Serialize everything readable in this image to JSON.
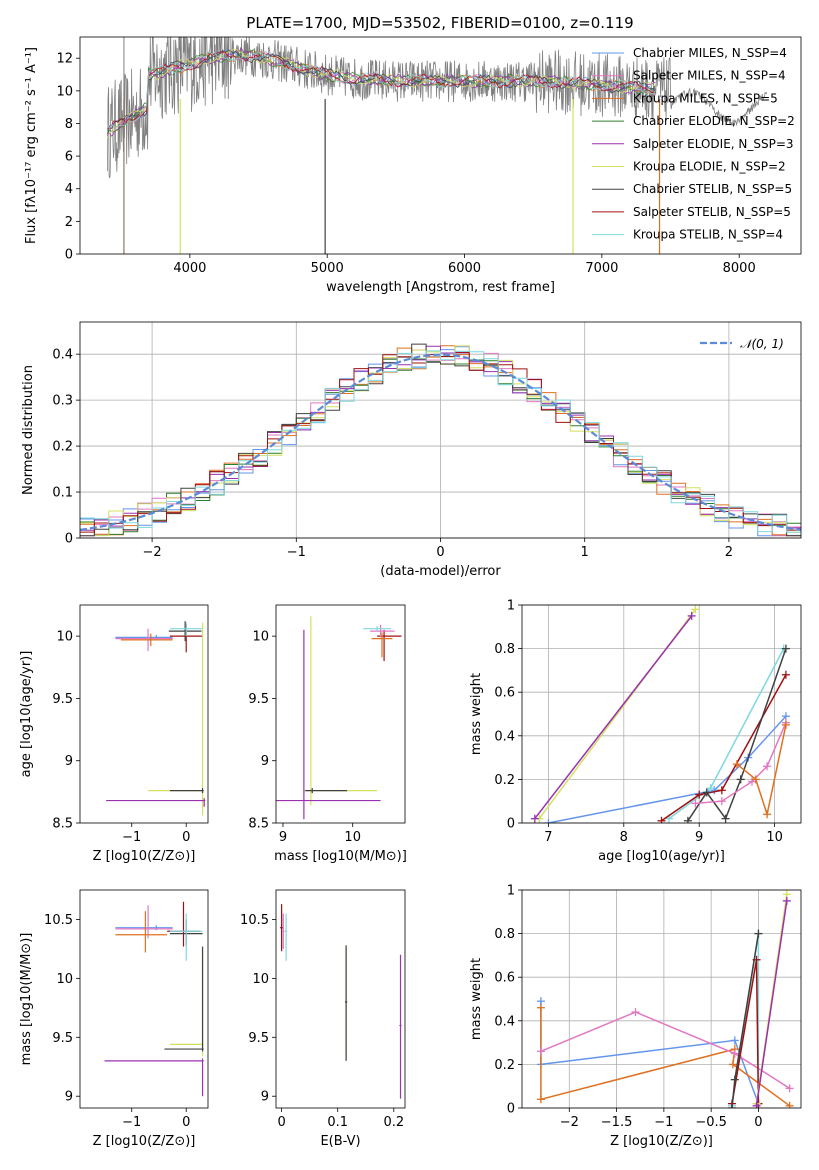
{
  "chart_data": [
    {
      "type": "line",
      "title": "PLATE=1700, MJD=53502, FIBERID=0100, z=0.119",
      "xlabel": "wavelength [Angstrom, rest frame]",
      "ylabel": "Flux [fλ10⁻¹⁷ erg cm⁻² s⁻¹ A⁻¹]",
      "xlim": [
        3200,
        8450
      ],
      "ylim": [
        0,
        13.3
      ],
      "xticks": [
        4000,
        5000,
        6000,
        7000,
        8000
      ],
      "yticks": [
        0,
        2,
        4,
        6,
        8,
        10,
        12
      ],
      "grid": false,
      "legend_position": "top-right",
      "series": [
        {
          "name": "Chabrier MILES, N_SSP=4",
          "color": "#6495ed"
        },
        {
          "name": "Salpeter MILES, N_SSP=4",
          "color": "#e377c2"
        },
        {
          "name": "Kroupa MILES, N_SSP=5",
          "color": "#e07020"
        },
        {
          "name": "Chabrier ELODIE, N_SSP=2",
          "color": "#2c7f2c"
        },
        {
          "name": "Salpeter ELODIE, N_SSP=3",
          "color": "#9b30b0"
        },
        {
          "name": "Kroupa ELODIE, N_SSP=2",
          "color": "#d4e060"
        },
        {
          "name": "Chabrier STELIB, N_SSP=5",
          "color": "#404040"
        },
        {
          "name": "Salpeter STELIB, N_SSP=5",
          "color": "#a01010"
        },
        {
          "name": "Kroupa STELIB, N_SSP=4",
          "color": "#7fd8e0"
        }
      ],
      "data_color": "#808080"
    },
    {
      "type": "bar",
      "xlabel": "(data-model)/error",
      "ylabel": "Normed distribution",
      "xlim": [
        -2.5,
        2.5
      ],
      "ylim": [
        0,
        0.47
      ],
      "xticks": [
        -2,
        -1,
        0,
        1,
        2
      ],
      "yticks": [
        0.0,
        0.1,
        0.2,
        0.3,
        0.4
      ],
      "grid": true,
      "legend": "𝒩(0, 1)",
      "legend_position": "top-right",
      "gaussian_color": "#5b8bd6"
    },
    {
      "type": "scatter",
      "xlabel": "Z [log10(Z/Z⊙)]",
      "ylabel": "age  [log10(age/yr)]",
      "xlim": [
        -1.95,
        0.4
      ],
      "ylim": [
        8.5,
        10.25
      ],
      "xticks": [
        -1,
        0
      ],
      "yticks": [
        8.5,
        9.0,
        9.5,
        10.0
      ]
    },
    {
      "type": "scatter",
      "xlabel": "mass [log10(M/M⊙)]",
      "xlim": [
        8.9,
        10.75
      ],
      "ylim": [
        8.5,
        10.25
      ],
      "xticks": [
        9,
        10
      ],
      "yticks": [
        8.5,
        9.0,
        9.5,
        10.0
      ]
    },
    {
      "type": "line",
      "xlabel": "age  [log10(age/yr)]",
      "ylabel": "mass weight",
      "xlim": [
        6.65,
        10.35
      ],
      "ylim": [
        0,
        1.0
      ],
      "xticks": [
        7,
        8,
        9,
        10
      ],
      "yticks": [
        0.0,
        0.2,
        0.4,
        0.6,
        0.8,
        1.0
      ],
      "grid": true
    },
    {
      "type": "scatter",
      "xlabel": "Z [log10(Z/Z⊙)]",
      "ylabel": "mass [log10(M/M⊙)]",
      "xlim": [
        -1.95,
        0.4
      ],
      "ylim": [
        8.9,
        10.75
      ],
      "xticks": [
        -1,
        0
      ],
      "yticks": [
        9.0,
        9.5,
        10.0,
        10.5
      ]
    },
    {
      "type": "scatter",
      "xlabel": "E(B-V)",
      "xlim": [
        -0.01,
        0.22
      ],
      "ylim": [
        8.9,
        10.75
      ],
      "xticks": [
        0.0,
        0.1,
        0.2
      ],
      "yticks": [
        9.0,
        9.5,
        10.0,
        10.5
      ]
    },
    {
      "type": "line",
      "xlabel": "Z [log10(Z/Z⊙)]",
      "ylabel": "mass weight",
      "xlim": [
        -2.5,
        0.45
      ],
      "ylim": [
        0,
        1.0
      ],
      "xticks": [
        -2.0,
        -1.5,
        -1.0,
        -0.5,
        0.0
      ],
      "yticks": [
        0.0,
        0.2,
        0.4,
        0.6,
        0.8,
        1.0
      ],
      "grid": true
    }
  ]
}
